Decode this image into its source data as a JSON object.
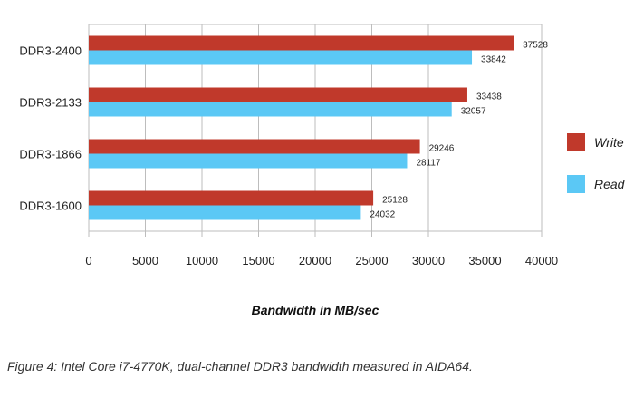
{
  "chart_data": {
    "type": "bar",
    "orientation": "horizontal",
    "categories": [
      "DDR3-2400",
      "DDR3-2133",
      "DDR3-1866",
      "DDR3-1600"
    ],
    "series": [
      {
        "name": "Write",
        "color": "#c0392b",
        "values": [
          37528,
          33438,
          29246,
          25128
        ]
      },
      {
        "name": "Read",
        "color": "#5bc8f5",
        "values": [
          33842,
          32057,
          28117,
          24032
        ]
      }
    ],
    "xlim": [
      0,
      40000
    ],
    "xticks": [
      "0",
      "5000",
      "10000",
      "15000",
      "20000",
      "25000",
      "30000",
      "35000",
      "40000"
    ],
    "xlabel": "Bandwidth in MB/sec",
    "ylabel": "",
    "grid": true,
    "legend_position": "right"
  },
  "caption": "Figure 4: Intel Core i7-4770K, dual-channel DDR3 bandwidth measured in AIDA64."
}
